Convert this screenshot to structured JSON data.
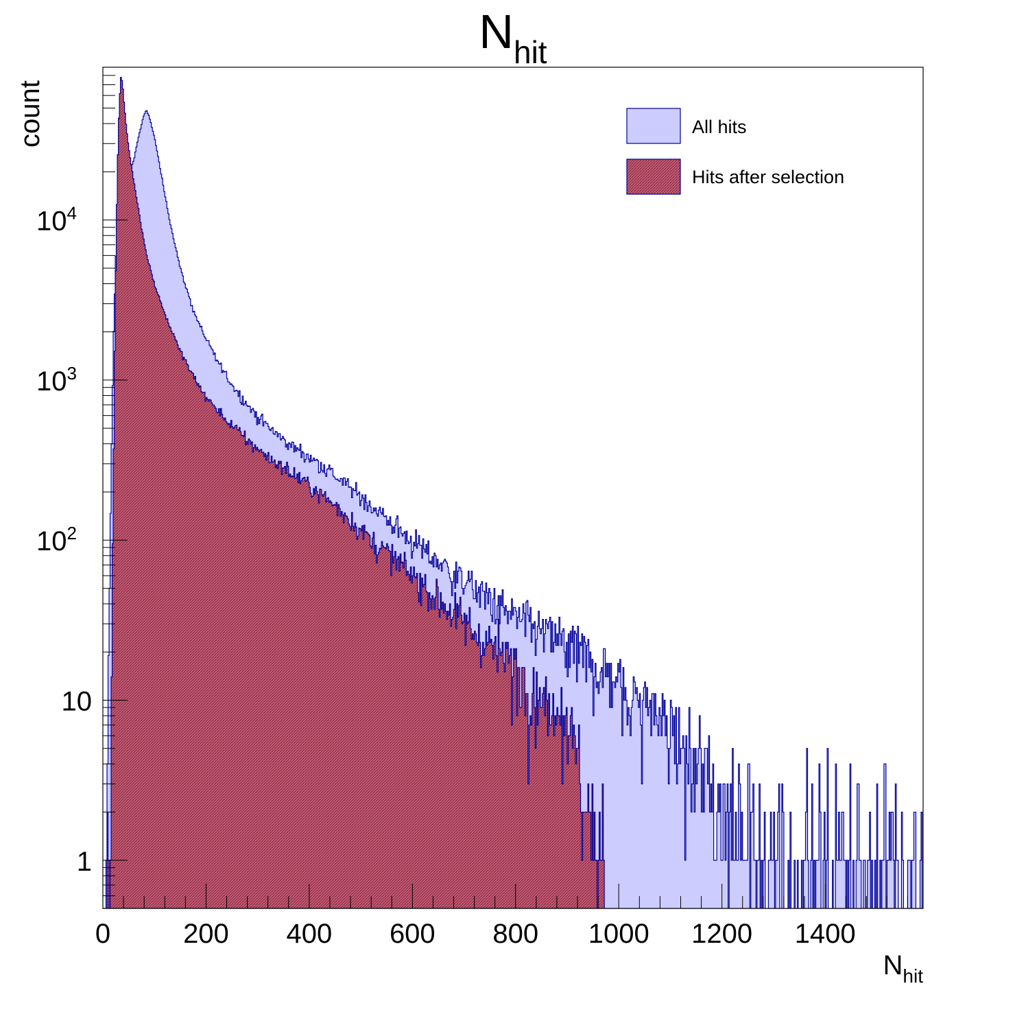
{
  "chart_data": {
    "type": "histogram",
    "title": {
      "main": "N",
      "sub": "hit"
    },
    "xlabel": {
      "main": "N",
      "sub": "hit"
    },
    "ylabel": "count",
    "xlim": [
      0,
      1590
    ],
    "ylim": [
      0.5,
      90000
    ],
    "yscale": "log",
    "xticks": [
      {
        "value": 0,
        "label": "0"
      },
      {
        "value": 200,
        "label": "200"
      },
      {
        "value": 400,
        "label": "400"
      },
      {
        "value": 600,
        "label": "600"
      },
      {
        "value": 800,
        "label": "800"
      },
      {
        "value": 1000,
        "label": "1000"
      },
      {
        "value": 1200,
        "label": "1200"
      },
      {
        "value": 1400,
        "label": "1400"
      }
    ],
    "yticks": [
      {
        "value": 1,
        "label": "1"
      },
      {
        "value": 10,
        "label": "10"
      },
      {
        "value": 100,
        "label": "10",
        "exp": "2"
      },
      {
        "value": 1000,
        "label": "10",
        "exp": "3"
      },
      {
        "value": 10000,
        "label": "10",
        "exp": "4"
      }
    ],
    "legend_position": "top-right",
    "series": [
      {
        "name": "All hits",
        "fill": "#ccccff",
        "line": "#000099",
        "points": [
          [
            5,
            0
          ],
          [
            8,
            1
          ],
          [
            10,
            5
          ],
          [
            12,
            30
          ],
          [
            15,
            150
          ],
          [
            20,
            1500
          ],
          [
            25,
            6000
          ],
          [
            30,
            9000
          ],
          [
            35,
            12000
          ],
          [
            40,
            14000
          ],
          [
            50,
            18000
          ],
          [
            60,
            24000
          ],
          [
            70,
            34000
          ],
          [
            80,
            46000
          ],
          [
            85,
            48000
          ],
          [
            90,
            44000
          ],
          [
            100,
            33000
          ],
          [
            110,
            22000
          ],
          [
            120,
            14500
          ],
          [
            130,
            9800
          ],
          [
            140,
            7000
          ],
          [
            150,
            5000
          ],
          [
            160,
            3900
          ],
          [
            170,
            3100
          ],
          [
            180,
            2500
          ],
          [
            200,
            1800
          ],
          [
            220,
            1350
          ],
          [
            240,
            1050
          ],
          [
            260,
            850
          ],
          [
            280,
            700
          ],
          [
            300,
            590
          ],
          [
            330,
            480
          ],
          [
            360,
            400
          ],
          [
            400,
            330
          ],
          [
            440,
            270
          ],
          [
            480,
            210
          ],
          [
            520,
            165
          ],
          [
            560,
            128
          ],
          [
            600,
            98
          ],
          [
            640,
            78
          ],
          [
            680,
            62
          ],
          [
            720,
            50
          ],
          [
            760,
            40
          ],
          [
            800,
            33
          ],
          [
            840,
            28
          ],
          [
            880,
            24
          ],
          [
            920,
            20
          ],
          [
            960,
            16
          ],
          [
            1000,
            13
          ],
          [
            1040,
            10
          ],
          [
            1080,
            8
          ],
          [
            1100,
            6
          ],
          [
            1150,
            4
          ],
          [
            1200,
            2.5
          ],
          [
            1250,
            1.8
          ],
          [
            1300,
            1.2
          ],
          [
            1350,
            1
          ],
          [
            1400,
            1
          ],
          [
            1450,
            1
          ],
          [
            1500,
            1
          ],
          [
            1540,
            1
          ],
          [
            1590,
            1
          ]
        ]
      },
      {
        "name": "Hits after selection",
        "fill": "#d0607a",
        "line": "#000099",
        "points": [
          [
            5,
            0
          ],
          [
            10,
            1
          ],
          [
            15,
            3
          ],
          [
            18,
            30
          ],
          [
            20,
            200
          ],
          [
            24,
            3000
          ],
          [
            28,
            20000
          ],
          [
            32,
            55000
          ],
          [
            35,
            78000
          ],
          [
            38,
            72000
          ],
          [
            42,
            50000
          ],
          [
            48,
            32000
          ],
          [
            55,
            22000
          ],
          [
            65,
            14000
          ],
          [
            75,
            9000
          ],
          [
            85,
            6000
          ],
          [
            100,
            4000
          ],
          [
            120,
            2600
          ],
          [
            140,
            1800
          ],
          [
            160,
            1300
          ],
          [
            180,
            1000
          ],
          [
            200,
            780
          ],
          [
            240,
            560
          ],
          [
            280,
            420
          ],
          [
            320,
            330
          ],
          [
            360,
            270
          ],
          [
            400,
            220
          ],
          [
            440,
            175
          ],
          [
            480,
            135
          ],
          [
            520,
            100
          ],
          [
            560,
            78
          ],
          [
            600,
            60
          ],
          [
            640,
            46
          ],
          [
            680,
            35
          ],
          [
            720,
            27
          ],
          [
            760,
            21
          ],
          [
            800,
            16
          ],
          [
            840,
            12
          ],
          [
            880,
            9
          ],
          [
            900,
            7
          ],
          [
            920,
            4
          ],
          [
            940,
            2
          ],
          [
            955,
            1
          ],
          [
            970,
            1
          ],
          [
            975,
            0
          ]
        ]
      }
    ]
  }
}
